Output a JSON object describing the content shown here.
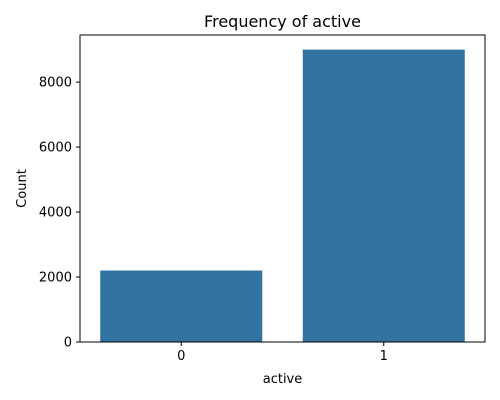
{
  "chart_data": {
    "type": "bar",
    "title": "Frequency of active",
    "xlabel": "active",
    "ylabel": "Count",
    "categories": [
      "0",
      "1"
    ],
    "values": [
      2200,
      9000
    ],
    "ylim": [
      0,
      9450
    ],
    "yticks": [
      0,
      2000,
      4000,
      6000,
      8000
    ],
    "bar_color": "#3274a1",
    "grid": false
  }
}
